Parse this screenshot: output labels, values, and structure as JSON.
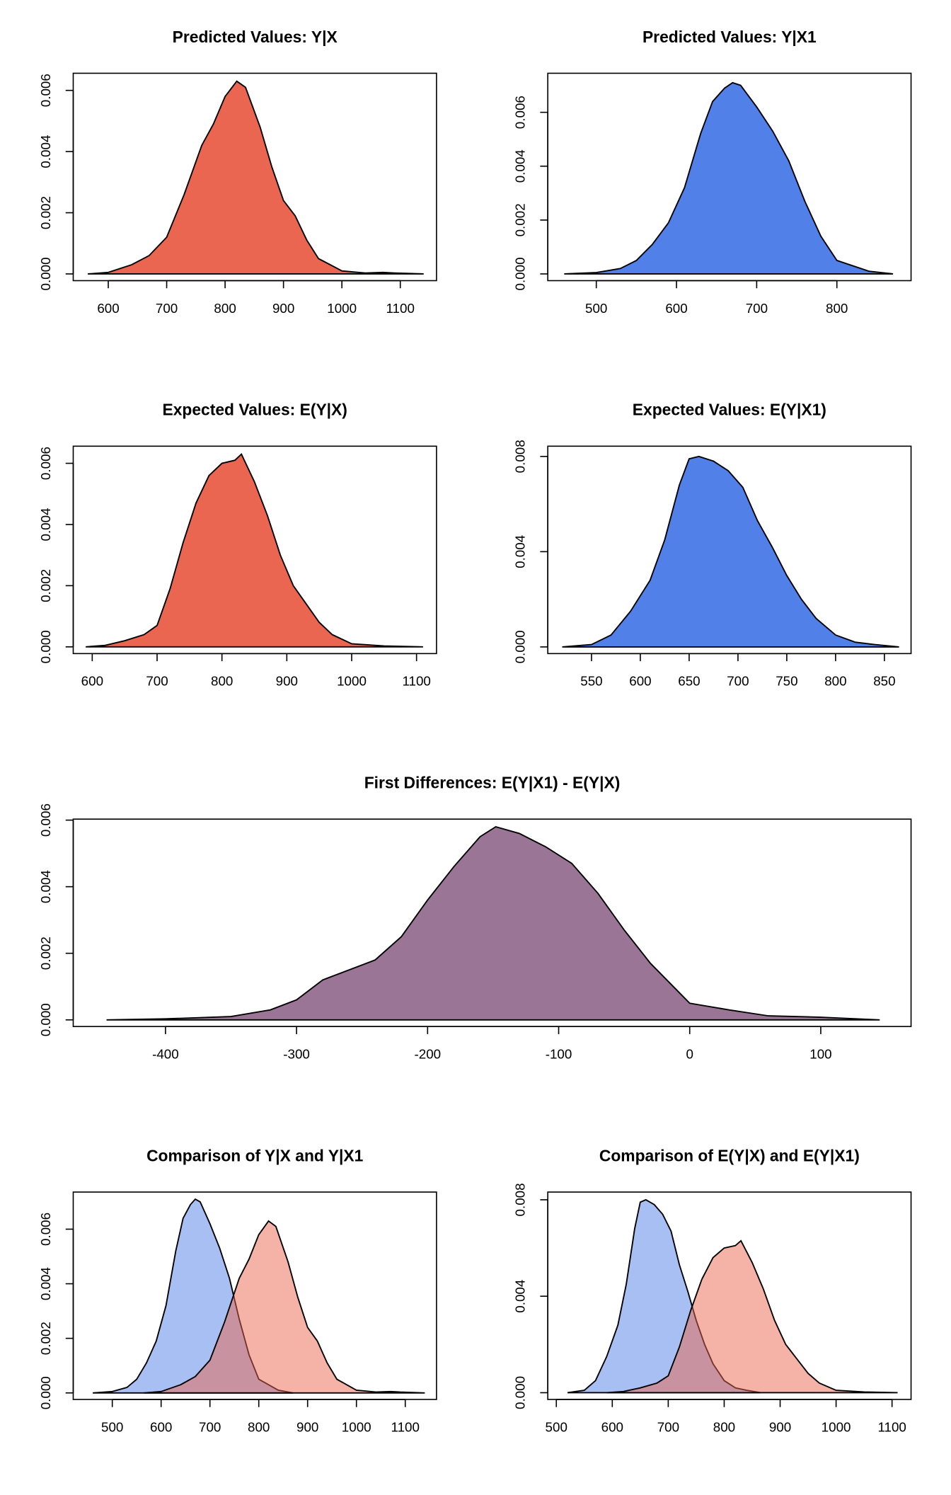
{
  "chart_data": [
    {
      "type": "area",
      "title": "Predicted Values: Y|X",
      "series": [
        {
          "color": "#eb6650",
          "x": [
            565,
            600,
            640,
            670,
            700,
            730,
            760,
            780,
            800,
            820,
            835,
            860,
            880,
            900,
            920,
            940,
            960,
            980,
            1000,
            1040,
            1070,
            1090,
            1140
          ],
          "values": [
            0,
            5e-05,
            0.0003,
            0.0006,
            0.0012,
            0.0026,
            0.0042,
            0.0049,
            0.0058,
            0.0063,
            0.0061,
            0.0048,
            0.0035,
            0.0024,
            0.0019,
            0.0011,
            0.0005,
            0.0003,
            0.0001,
            3e-05,
            5e-05,
            3e-05,
            0
          ]
        }
      ],
      "xlim": [
        540,
        1162
      ],
      "ylim": [
        -0.00022,
        0.00656
      ],
      "xticks": [
        600,
        700,
        800,
        900,
        1000,
        1100
      ],
      "yticks": [
        {
          "value": 0,
          "label": "0.000"
        },
        0.002,
        0.004,
        0.006
      ]
    },
    {
      "type": "area",
      "title": "Predicted Values: Y|X1",
      "series": [
        {
          "color": "#5080e8",
          "x": [
            460,
            500,
            530,
            550,
            570,
            590,
            610,
            630,
            645,
            660,
            670,
            680,
            700,
            720,
            740,
            760,
            780,
            800,
            820,
            840,
            870
          ],
          "values": [
            0,
            5e-05,
            0.0002,
            0.0005,
            0.0011,
            0.0019,
            0.0032,
            0.0052,
            0.0064,
            0.0069,
            0.0071,
            0.007,
            0.0062,
            0.0053,
            0.0042,
            0.0027,
            0.0014,
            0.0005,
            0.0003,
            0.0001,
            0
          ]
        }
      ],
      "xlim": [
        439.5,
        892.5
      ],
      "ylim": [
        -0.00025,
        0.00745
      ],
      "xticks": [
        500,
        600,
        700,
        800
      ],
      "yticks": [
        {
          "value": 0,
          "label": "0.000"
        },
        0.002,
        0.004,
        0.006
      ]
    },
    {
      "type": "area",
      "title": "Expected Values: E(Y|X)",
      "series": [
        {
          "color": "#eb6650",
          "x": [
            590,
            620,
            650,
            680,
            700,
            720,
            740,
            760,
            780,
            800,
            820,
            830,
            850,
            870,
            890,
            910,
            930,
            950,
            970,
            1000,
            1050,
            1110
          ],
          "values": [
            0,
            5e-05,
            0.0002,
            0.0004,
            0.0007,
            0.0019,
            0.0034,
            0.0047,
            0.0056,
            0.006,
            0.0061,
            0.0063,
            0.0054,
            0.0043,
            0.003,
            0.002,
            0.0014,
            0.0008,
            0.0004,
            0.0001,
            3e-05,
            0
          ]
        }
      ],
      "xlim": [
        570.7,
        1130.8
      ],
      "ylim": [
        -0.00022,
        0.00656
      ],
      "xticks": [
        600,
        700,
        800,
        900,
        1000,
        1100
      ],
      "yticks": [
        {
          "value": 0,
          "label": "0.000"
        },
        0.002,
        0.004,
        0.006
      ]
    },
    {
      "type": "area",
      "title": "Expected Values: E(Y|X1)",
      "series": [
        {
          "color": "#5080e8",
          "x": [
            520,
            550,
            570,
            590,
            610,
            625,
            640,
            650,
            660,
            675,
            690,
            705,
            720,
            735,
            750,
            765,
            780,
            800,
            820,
            840,
            865
          ],
          "values": [
            0,
            0.0001,
            0.0005,
            0.0015,
            0.0028,
            0.0045,
            0.0068,
            0.0079,
            0.008,
            0.0078,
            0.0074,
            0.0067,
            0.0053,
            0.0042,
            0.003,
            0.002,
            0.0012,
            0.0005,
            0.0002,
            0.0001,
            0
          ]
        }
      ],
      "xlim": [
        505.2,
        877.3
      ],
      "ylim": [
        -0.00028,
        0.00843
      ],
      "xticks": [
        550,
        600,
        650,
        700,
        750,
        800,
        850
      ],
      "yticks": [
        {
          "value": 0,
          "label": "0.000"
        },
        0.004,
        0.008
      ]
    },
    {
      "type": "area",
      "title": "First Differences: E(Y|X1) - E(Y|X)",
      "series": [
        {
          "color": "#9b7595",
          "x": [
            -445,
            -400,
            -350,
            -320,
            -300,
            -280,
            -260,
            -240,
            -220,
            -200,
            -180,
            -160,
            -148,
            -130,
            -110,
            -90,
            -70,
            -50,
            -30,
            -10,
            0,
            30,
            60,
            100,
            145
          ],
          "values": [
            0,
            3e-05,
            0.0001,
            0.0003,
            0.0006,
            0.0012,
            0.0015,
            0.0018,
            0.0025,
            0.0036,
            0.0046,
            0.0055,
            0.0058,
            0.0056,
            0.0052,
            0.0047,
            0.0038,
            0.0027,
            0.0017,
            0.0009,
            0.0005,
            0.0003,
            0.00012,
            8e-05,
            0
          ]
        }
      ],
      "xlim": [
        -470.4,
        168.9
      ],
      "ylim": [
        -0.0002,
        0.00603
      ],
      "xticks": [
        -400,
        -300,
        -200,
        -100,
        0,
        100
      ],
      "yticks": [
        {
          "value": 0,
          "label": "0.000"
        },
        0.002,
        0.004,
        0.006
      ]
    },
    {
      "type": "area",
      "title": "Comparison of Y|X and Y|X1",
      "series": [
        {
          "color": "#5080e8",
          "x": [
            460,
            500,
            530,
            550,
            570,
            590,
            610,
            630,
            645,
            660,
            670,
            680,
            700,
            720,
            740,
            760,
            780,
            800,
            820,
            840,
            870
          ],
          "values": [
            0,
            5e-05,
            0.0002,
            0.0005,
            0.0011,
            0.0019,
            0.0032,
            0.0052,
            0.0064,
            0.0069,
            0.0071,
            0.007,
            0.0062,
            0.0053,
            0.0042,
            0.0027,
            0.0014,
            0.0005,
            0.0003,
            0.0001,
            0
          ]
        },
        {
          "color": "#eb6650",
          "x": [
            565,
            600,
            640,
            670,
            700,
            730,
            760,
            780,
            800,
            820,
            835,
            860,
            880,
            900,
            920,
            940,
            960,
            980,
            1000,
            1040,
            1070,
            1090,
            1140
          ],
          "values": [
            0,
            5e-05,
            0.0003,
            0.0006,
            0.0012,
            0.0026,
            0.0042,
            0.0049,
            0.0058,
            0.0063,
            0.0061,
            0.0048,
            0.0035,
            0.0024,
            0.0019,
            0.0011,
            0.0005,
            0.0003,
            0.0001,
            3e-05,
            5e-05,
            3e-05,
            0
          ]
        }
      ],
      "xlim": [
        420,
        1164
      ],
      "ylim": [
        -0.00024,
        0.00736
      ],
      "xticks": [
        500,
        600,
        700,
        800,
        900,
        1000,
        1100
      ],
      "yticks": [
        {
          "value": 0,
          "label": "0.000"
        },
        0.002,
        0.004,
        0.006
      ]
    },
    {
      "type": "area",
      "title": "Comparison of E(Y|X) and E(Y|X1)",
      "series": [
        {
          "color": "#5080e8",
          "x": [
            520,
            550,
            570,
            590,
            610,
            625,
            640,
            650,
            660,
            675,
            690,
            705,
            720,
            735,
            750,
            765,
            780,
            800,
            820,
            840,
            865
          ],
          "values": [
            0,
            0.0001,
            0.0005,
            0.0015,
            0.0028,
            0.0045,
            0.0068,
            0.0079,
            0.008,
            0.0078,
            0.0074,
            0.0067,
            0.0053,
            0.0042,
            0.003,
            0.002,
            0.0012,
            0.0005,
            0.0002,
            0.0001,
            0
          ]
        },
        {
          "color": "#eb6650",
          "x": [
            590,
            620,
            650,
            680,
            700,
            720,
            740,
            760,
            780,
            800,
            820,
            830,
            850,
            870,
            890,
            910,
            930,
            950,
            970,
            1000,
            1050,
            1110
          ],
          "values": [
            0,
            5e-05,
            0.0002,
            0.0004,
            0.0007,
            0.0019,
            0.0034,
            0.0047,
            0.0056,
            0.006,
            0.0061,
            0.0063,
            0.0054,
            0.0043,
            0.003,
            0.002,
            0.0014,
            0.0008,
            0.0004,
            0.0001,
            3e-05,
            0
          ]
        }
      ],
      "xlim": [
        484.7,
        1134
      ],
      "ylim": [
        -0.00028,
        0.00832
      ],
      "xticks": [
        500,
        600,
        700,
        800,
        900,
        1000,
        1100
      ],
      "yticks": [
        {
          "value": 0,
          "label": "0.000"
        },
        0.004,
        0.008
      ]
    }
  ]
}
